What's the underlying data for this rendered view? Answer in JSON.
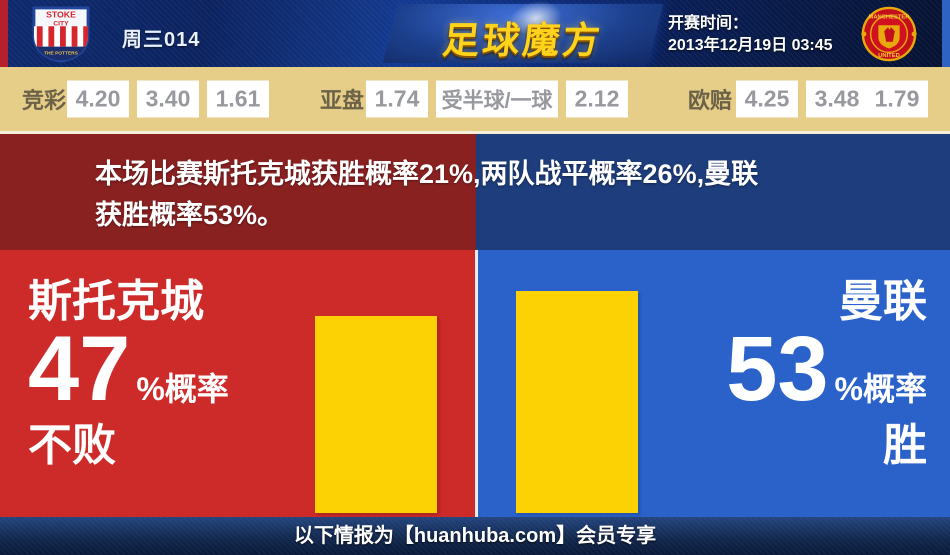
{
  "header": {
    "match_code": "周三014",
    "logo_text": "足球魔方",
    "kickoff_label": "开赛时间：",
    "kickoff_time": "2013年12月19日 03:45"
  },
  "badges": {
    "home": {
      "name": "斯托克城队徽",
      "line1": "STOKE",
      "line2": "CITY",
      "line3": "THE POTTERS"
    },
    "away": {
      "name": "曼联队徽",
      "line1": "MANCHESTER",
      "line2": "UNITED"
    }
  },
  "odds": {
    "jingcai": {
      "label": "竞彩",
      "values": [
        "4.20",
        "3.40",
        "1.61"
      ]
    },
    "yapan": {
      "label": "亚盘",
      "values": [
        "1.74",
        "受半球/一球",
        "2.12"
      ]
    },
    "oupei": {
      "label": "欧赔",
      "values": [
        "4.25",
        "3.48",
        "1.79"
      ]
    }
  },
  "summary": {
    "line1": "本场比赛斯托克城获胜概率21%,两队战平概率26%,曼联",
    "line2": "获胜概率53%。",
    "home_win_percent": 21,
    "draw_percent": 26,
    "away_win_percent": 53
  },
  "panels": {
    "home": {
      "team": "斯托克城",
      "percent": "47",
      "suffix": "%概率",
      "outcome": "不败"
    },
    "away": {
      "team": "曼联",
      "percent": "53",
      "suffix": "%概率",
      "outcome": "胜"
    }
  },
  "footer": {
    "text": "以下情报为【huanhuba.com】会员专享"
  },
  "colors": {
    "home_red": "#cd2a2a",
    "away_blue": "#2b62c9",
    "banner_dark_red": "#8a2121",
    "banner_dark_blue": "#1e3d7c",
    "bar_yellow": "#fdd205",
    "odds_bg_tan": "#e6cd88",
    "logo_gold": "#ffd21c",
    "header_navy": "#0c2360"
  },
  "chart_data": {
    "type": "bar",
    "categories": [
      "斯托克城不败",
      "曼联胜"
    ],
    "values": [
      47,
      53
    ],
    "unit": "%",
    "bar_color": "#fdd205",
    "ylim": [
      0,
      63.7
    ],
    "legend_position": "none",
    "grid": false
  }
}
